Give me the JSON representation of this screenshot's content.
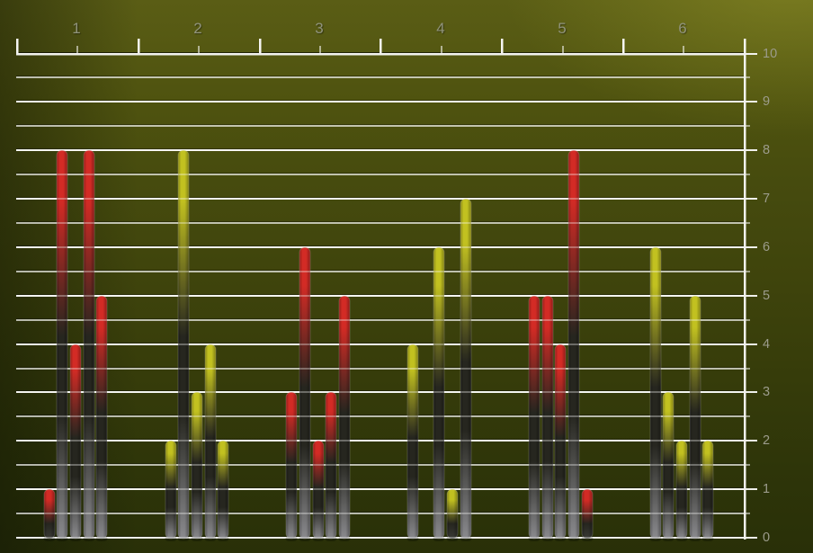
{
  "chart_data": {
    "type": "bar",
    "title": "",
    "xlabel": "",
    "ylabel": "",
    "categories": [
      "1",
      "2",
      "3",
      "4",
      "5",
      "6"
    ],
    "groups": [
      {
        "category": "1",
        "color": "red",
        "values": [
          1,
          8,
          4,
          8,
          5
        ]
      },
      {
        "category": "2",
        "color": "yellow",
        "values": [
          2,
          8,
          3,
          4,
          2
        ]
      },
      {
        "category": "3",
        "color": "red",
        "values": [
          3,
          6,
          2,
          3,
          5
        ]
      },
      {
        "category": "4",
        "color": "yellow",
        "values": [
          4,
          0,
          6,
          1,
          7
        ]
      },
      {
        "category": "5",
        "color": "red",
        "values": [
          5,
          5,
          4,
          8,
          1
        ]
      },
      {
        "category": "6",
        "color": "yellow",
        "values": [
          6,
          3,
          2,
          5,
          2
        ]
      }
    ],
    "ylim": [
      0,
      10
    ],
    "y_tick_labels": [
      "0",
      "1",
      "2",
      "3",
      "4",
      "5",
      "6",
      "7",
      "8",
      "9",
      "10"
    ],
    "grid_step": 0.5,
    "x_axis_position": "top",
    "y_axis_position": "right",
    "legend": "none"
  },
  "colors": {
    "red_bar": "#d32b25",
    "yellow_bar": "#c2c120",
    "bar_dark": "#26261f",
    "bar_base_gray": "#8a8a8e",
    "background_light": "#6c6e1d",
    "background_dark": "#293008",
    "grid_major": "#fafaf8",
    "label_color": "#90937c"
  }
}
